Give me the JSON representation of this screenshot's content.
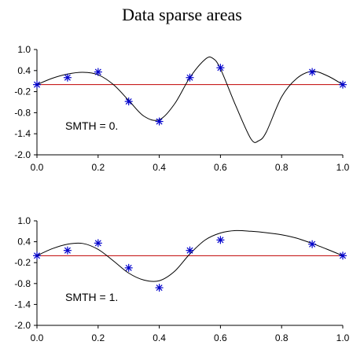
{
  "title": "Data sparse areas",
  "colors": {
    "axis": "#000000",
    "curve": "#000000",
    "baseline": "#c00000",
    "marker": "#0000cc"
  },
  "chart_data": [
    {
      "type": "line",
      "annotation": "SMTH = 0.",
      "xlim": [
        0.0,
        1.0
      ],
      "ylim": [
        -2.0,
        1.0
      ],
      "xticks": [
        "0.0",
        "0.2",
        "0.4",
        "0.6",
        "0.8",
        "1.0"
      ],
      "yticks": [
        "1.0",
        "0.4",
        "-0.2",
        "-0.8",
        "-1.4",
        "-2.0"
      ],
      "baseline_y": 0.0,
      "points": {
        "marker": "asterisk",
        "x": [
          0.0,
          0.1,
          0.2,
          0.3,
          0.4,
          0.5,
          0.6,
          0.9,
          1.0
        ],
        "y": [
          0.0,
          0.2,
          0.36,
          -0.48,
          -1.05,
          0.2,
          0.48,
          0.36,
          0.0
        ]
      },
      "curve": {
        "x": [
          0.0,
          0.05,
          0.1,
          0.15,
          0.2,
          0.25,
          0.3,
          0.35,
          0.4,
          0.45,
          0.5,
          0.55,
          0.575,
          0.6,
          0.65,
          0.7,
          0.725,
          0.75,
          0.8,
          0.85,
          0.9,
          0.95,
          1.0
        ],
        "y": [
          0.0,
          0.18,
          0.3,
          0.35,
          0.28,
          0.0,
          -0.45,
          -0.9,
          -1.0,
          -0.55,
          0.2,
          0.72,
          0.75,
          0.45,
          -0.6,
          -1.55,
          -1.6,
          -1.35,
          -0.35,
          0.18,
          0.38,
          0.25,
          0.0
        ]
      }
    },
    {
      "type": "line",
      "annotation": "SMTH = 1.",
      "xlim": [
        0.0,
        1.0
      ],
      "ylim": [
        -2.0,
        1.0
      ],
      "xticks": [
        "0.0",
        "0.2",
        "0.4",
        "0.6",
        "0.8",
        "1.0"
      ],
      "yticks": [
        "1.0",
        "0.4",
        "-0.2",
        "-0.8",
        "-1.4",
        "-2.0"
      ],
      "baseline_y": 0.0,
      "points": {
        "marker": "asterisk",
        "x": [
          0.0,
          0.1,
          0.2,
          0.3,
          0.4,
          0.5,
          0.6,
          0.9,
          1.0
        ],
        "y": [
          0.0,
          0.15,
          0.36,
          -0.35,
          -0.92,
          0.15,
          0.45,
          0.33,
          0.0
        ]
      },
      "curve": {
        "x": [
          0.0,
          0.05,
          0.1,
          0.15,
          0.2,
          0.25,
          0.3,
          0.35,
          0.4,
          0.45,
          0.5,
          0.55,
          0.6,
          0.65,
          0.7,
          0.75,
          0.8,
          0.85,
          0.9,
          0.95,
          1.0
        ],
        "y": [
          0.0,
          0.2,
          0.33,
          0.35,
          0.18,
          -0.15,
          -0.5,
          -0.7,
          -0.72,
          -0.45,
          0.05,
          0.45,
          0.65,
          0.72,
          0.7,
          0.66,
          0.6,
          0.5,
          0.35,
          0.18,
          0.0
        ]
      }
    }
  ]
}
